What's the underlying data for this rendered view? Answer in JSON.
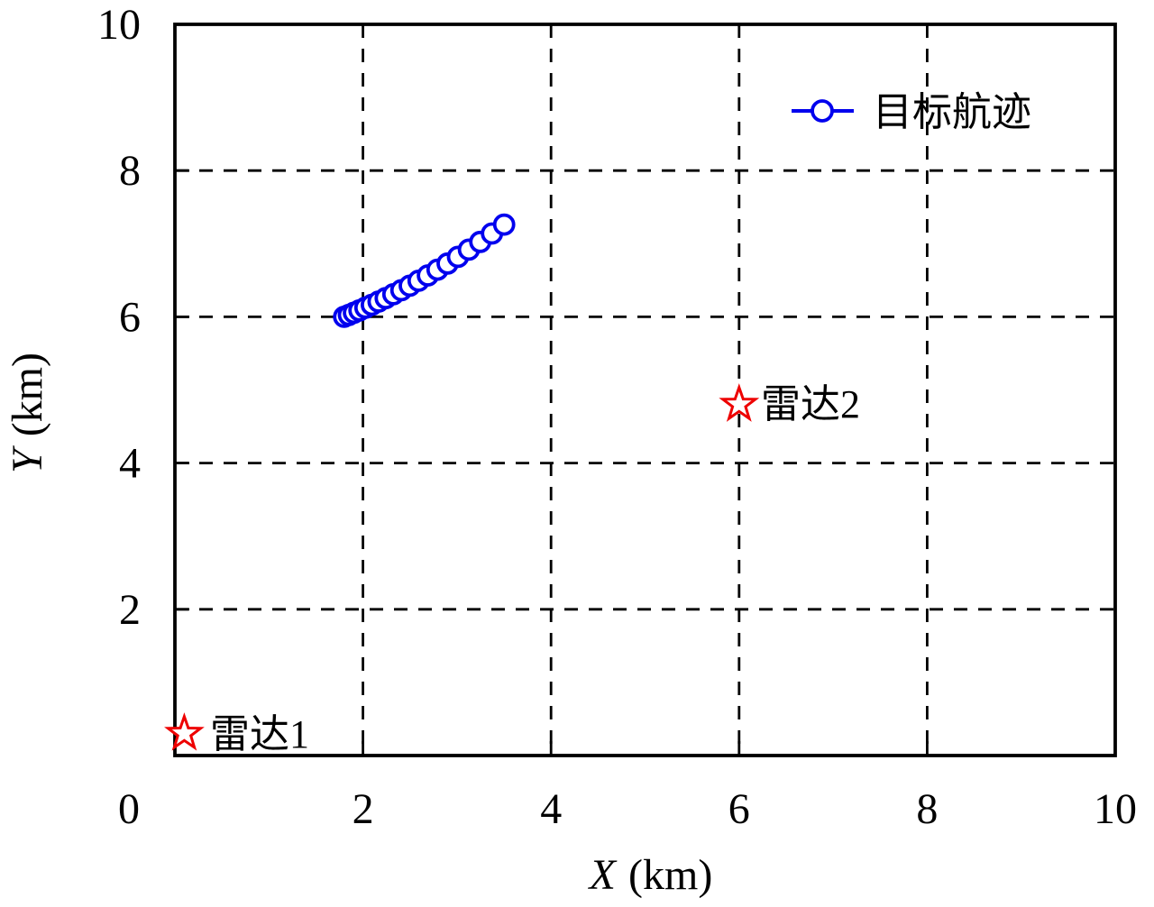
{
  "figure": {
    "background": "#FFFFFF",
    "xlabel": {
      "variable": "X",
      "unit": "(km)"
    },
    "ylabel": {
      "variable": "Y",
      "unit": "(km)"
    },
    "legend": {
      "label": "目标航迹",
      "position": "top-right",
      "frame": false
    }
  },
  "chart_data": {
    "type": "line",
    "title": "",
    "xlabel": "X (km)",
    "ylabel": "Y (km)",
    "xlim": [
      0,
      10
    ],
    "ylim": [
      0,
      10
    ],
    "xticks": [
      0,
      2,
      4,
      6,
      8,
      10
    ],
    "yticks": [
      2,
      4,
      6,
      8,
      10
    ],
    "grid": {
      "on": true,
      "style": "dashed",
      "color": "#000000",
      "positions_x": [
        2,
        4,
        6,
        8
      ],
      "positions_y": [
        2,
        4,
        6,
        8
      ]
    },
    "series": [
      {
        "name": "目标航迹",
        "type": "line",
        "marker": "circle",
        "marker_fill": "#FFFFFF",
        "color": "#0000EE",
        "x": [
          1.8,
          1.85,
          1.904,
          1.963,
          2.026,
          2.094,
          2.166,
          2.242,
          2.323,
          2.408,
          2.498,
          2.592,
          2.69,
          2.793,
          2.9,
          3.011,
          3.127,
          3.247,
          3.372,
          3.501
        ],
        "y": [
          6.0,
          6.026,
          6.056,
          6.088,
          6.124,
          6.164,
          6.208,
          6.255,
          6.308,
          6.364,
          6.426,
          6.493,
          6.566,
          6.645,
          6.729,
          6.82,
          6.919,
          7.025,
          7.139,
          7.261
        ]
      }
    ],
    "annotations": [
      {
        "label": "雷达1",
        "marker": "pentagram",
        "color": "#EE0000",
        "x": 0.1,
        "y": 0.3
      },
      {
        "label": "雷达2",
        "marker": "pentagram",
        "color": "#EE0000",
        "x": 6.0,
        "y": 4.8
      }
    ]
  }
}
